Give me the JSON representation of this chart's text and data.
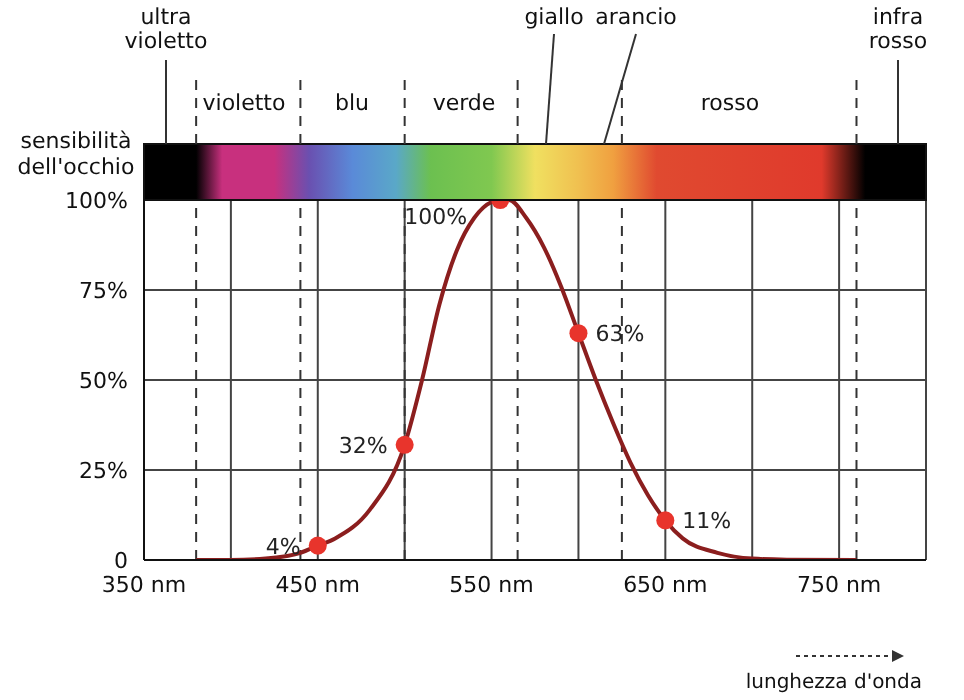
{
  "chart_data": {
    "type": "line",
    "ylabel": "sensibilità dell'occhio",
    "xlabel": "lunghezza d'onda",
    "series": [
      {
        "color": "#8b1e1e",
        "x": [
          380,
          400,
          420,
          440,
          450,
          460,
          480,
          500,
          510,
          520,
          530,
          540,
          555,
          560,
          570,
          580,
          590,
          600,
          610,
          620,
          630,
          640,
          650,
          660,
          680,
          700,
          720,
          760
        ],
        "values": [
          0,
          0,
          0.4,
          2,
          4,
          6,
          14,
          32,
          50,
          71,
          86,
          95,
          100,
          100,
          95,
          87,
          76,
          63,
          50,
          38,
          27,
          18,
          11,
          6,
          2,
          0.4,
          0.1,
          0
        ]
      },
      {
        "type": "scatter",
        "color": "#e8342c",
        "x": [
          450,
          500,
          555,
          600,
          650
        ],
        "values": [
          4,
          32,
          100,
          63,
          11
        ],
        "value_labels": [
          "4%",
          "32%",
          "100%",
          "63%",
          "11%"
        ]
      }
    ],
    "ref_lines": [
      {
        "axis": "x",
        "value": 380,
        "line_style": "dashed"
      },
      {
        "axis": "x",
        "value": 440,
        "line_style": "dashed"
      },
      {
        "axis": "x",
        "value": 500,
        "line_style": "dashed"
      },
      {
        "axis": "x",
        "value": 565,
        "line_style": "dashed"
      },
      {
        "axis": "x",
        "value": 625,
        "line_style": "dashed"
      },
      {
        "axis": "x",
        "value": 760,
        "line_style": "dashed"
      }
    ],
    "annotations": [
      "ultra violetto",
      "violetto",
      "blu",
      "verde",
      "giallo",
      "arancio",
      "rosso",
      "infra rosso"
    ],
    "xlim": [
      350,
      800
    ],
    "xticks": [
      {
        "value": 350,
        "label": "350 nm"
      },
      {
        "value": 400,
        "label": null
      },
      {
        "value": 450,
        "label": "450 nm"
      },
      {
        "value": 500,
        "label": null
      },
      {
        "value": 550,
        "label": "550 nm"
      },
      {
        "value": 600,
        "label": null
      },
      {
        "value": 650,
        "label": "650 nm"
      },
      {
        "value": 700,
        "label": null
      },
      {
        "value": 750,
        "label": "750 nm"
      },
      {
        "value": 800,
        "label": null
      }
    ],
    "ylim": [
      0,
      100
    ],
    "yticks": [
      0,
      {
        "value": 25,
        "label": "25%"
      },
      {
        "value": 50,
        "label": "50%"
      },
      {
        "value": 75,
        "label": "75%"
      },
      {
        "value": 100,
        "label": "100%"
      }
    ],
    "grid": true,
    "line_style": "solid"
  }
}
